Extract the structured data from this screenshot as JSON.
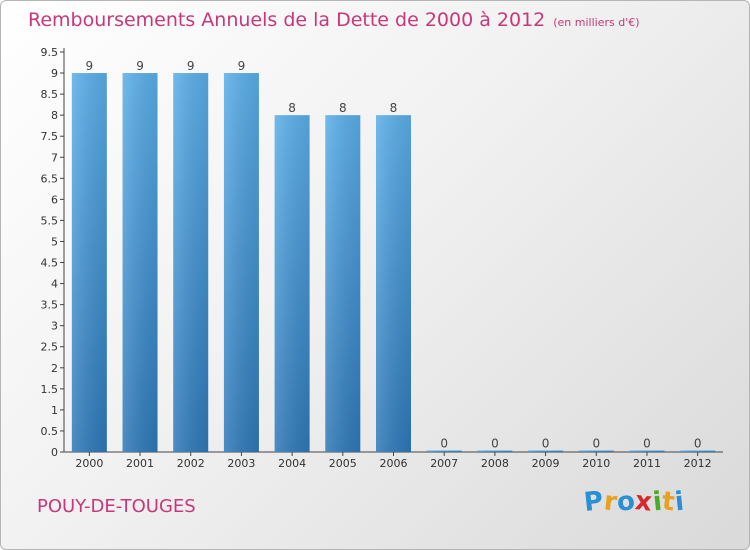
{
  "header": {
    "title": "Remboursements Annuels de la Dette de 2000 à 2012",
    "subtitle": "(en milliers d'€)"
  },
  "footer": {
    "commune": "POUY-DE-TOUGES",
    "logo_letters": [
      {
        "ch": "P",
        "color": "#2a8fd4"
      },
      {
        "ch": "r",
        "color": "#e8a020"
      },
      {
        "ch": "o",
        "color": "#2a8fd4"
      },
      {
        "ch": "x",
        "color": "#d62a2a"
      },
      {
        "ch": "i",
        "color": "#4aaa2a"
      },
      {
        "ch": "t",
        "color": "#e8a020"
      },
      {
        "ch": "i",
        "color": "#2a8fd4"
      }
    ]
  },
  "chart_data": {
    "type": "bar",
    "categories": [
      "2000",
      "2001",
      "2002",
      "2003",
      "2004",
      "2005",
      "2006",
      "2007",
      "2008",
      "2009",
      "2010",
      "2011",
      "2012"
    ],
    "values": [
      9,
      9,
      9,
      9,
      8,
      8,
      8,
      0,
      0,
      0,
      0,
      0,
      0
    ],
    "data_labels": [
      "9",
      "9",
      "9",
      "9",
      "8",
      "8",
      "8",
      "0",
      "0",
      "0",
      "0",
      "0",
      "0"
    ],
    "yticks": [
      "0",
      "0.5",
      "1",
      "1.5",
      "2",
      "2.5",
      "3",
      "3.5",
      "4",
      "4.5",
      "5",
      "5.5",
      "6",
      "6.5",
      "7",
      "7.5",
      "8",
      "8.5",
      "9",
      "9.5"
    ],
    "ylim": [
      0,
      9.5
    ],
    "grid": false,
    "bar_color": "#4a9ad8",
    "text_color": "#c8377a"
  }
}
